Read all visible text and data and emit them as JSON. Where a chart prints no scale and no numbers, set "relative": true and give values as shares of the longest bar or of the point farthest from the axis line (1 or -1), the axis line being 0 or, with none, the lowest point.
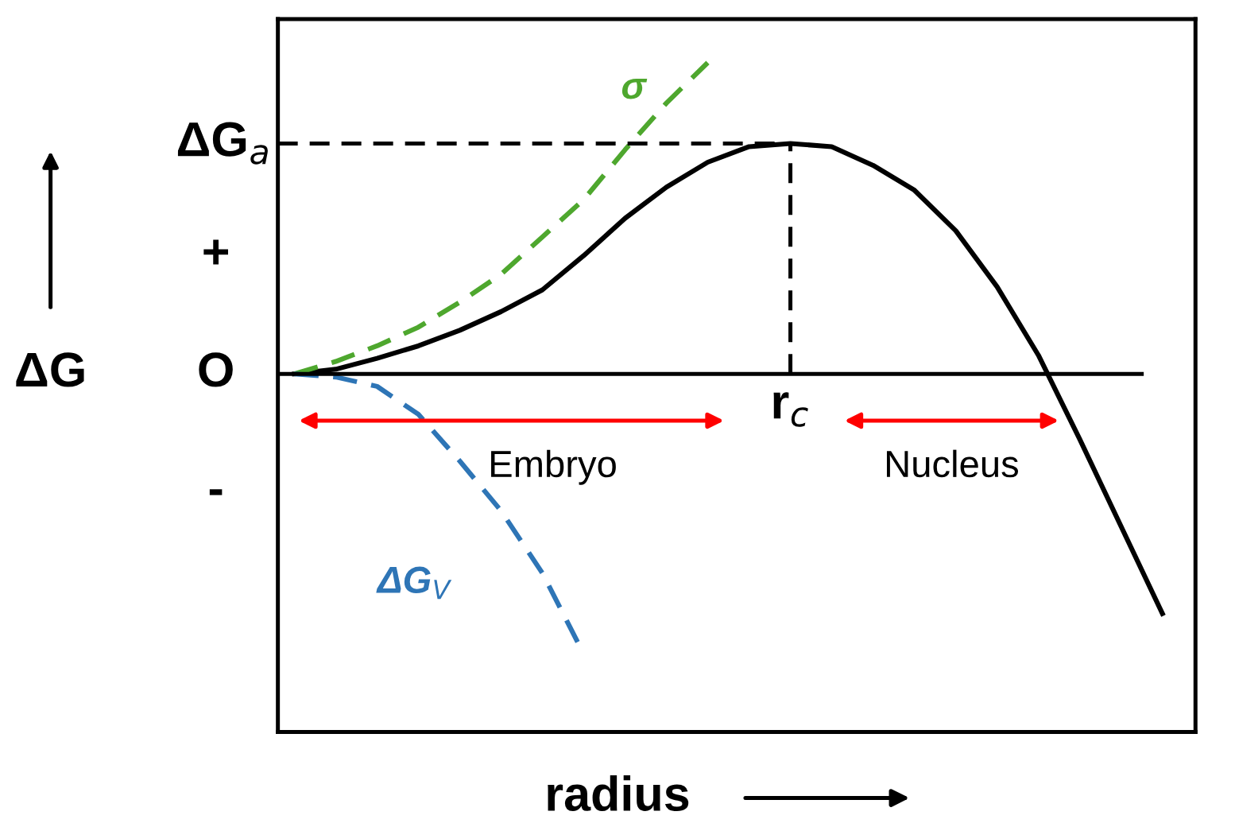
{
  "chart_data": {
    "type": "line",
    "relative": true,
    "line_style": "solid",
    "marker": "none",
    "categories": [
      null,
      null,
      null,
      null,
      null,
      null,
      null,
      null,
      null,
      null,
      null,
      null,
      null,
      null,
      null,
      null,
      null,
      null,
      null,
      null,
      null,
      null
    ],
    "series": [
      {
        "color": "#000000",
        "values": [
          0,
          0.015,
          0.05,
          0.09,
          0.14,
          0.2,
          0.27,
          0.38,
          0.5,
          0.6,
          0.68,
          0.73,
          0.74,
          0.73,
          0.67,
          0.59,
          0.46,
          0.28,
          0.06,
          -0.21,
          -0.49,
          -0.77
        ]
      },
      {
        "name": "σ",
        "color": "#4ea72e",
        "line_style": "dashed",
        "values": [
          0,
          0.04,
          0.09,
          0.15,
          0.23,
          0.32,
          0.44,
          0.56,
          0.72,
          0.87,
          1.0,
          null,
          null,
          null,
          null,
          null,
          null,
          null,
          null,
          null,
          null,
          null
        ]
      },
      {
        "name": "ΔG$_{V}$",
        "color": "#2e75b6",
        "line_style": "dashed",
        "values": [
          0,
          -0.01,
          -0.04,
          -0.13,
          -0.28,
          -0.44,
          -0.64,
          -0.9,
          null,
          null,
          null,
          null,
          null,
          null,
          null,
          null,
          null,
          null,
          null,
          null,
          null,
          null
        ]
      }
    ],
    "ref_lines": [
      {
        "axis": "y",
        "value": 0.74,
        "label": "ΔG$_{a}$",
        "color": "#000000",
        "line_style": "dashed"
      }
    ],
    "ylabel": "ΔG",
    "xlabel": "radius",
    "annotations": [
      "+",
      "O",
      "-",
      "Embryo",
      "Nucleus",
      "r$_{c}$"
    ]
  }
}
